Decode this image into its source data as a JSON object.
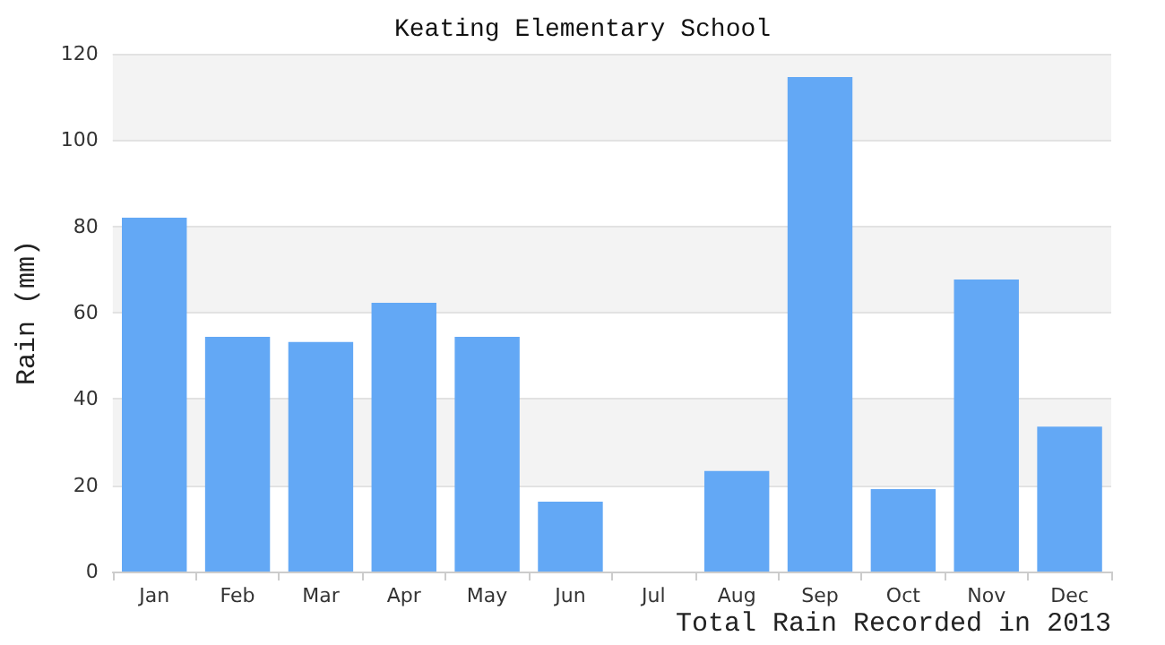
{
  "chart_data": {
    "type": "bar",
    "title": "Keating Elementary School",
    "xlabel": "Total Rain Recorded in 2013",
    "ylabel": "Rain (mm)",
    "categories": [
      "Jan",
      "Feb",
      "Mar",
      "Apr",
      "May",
      "Jun",
      "Jul",
      "Aug",
      "Sep",
      "Oct",
      "Nov",
      "Dec"
    ],
    "values": [
      82,
      54.4,
      53.2,
      62.3,
      54.4,
      16.2,
      null,
      23.3,
      114.6,
      19.1,
      67.7,
      33.6
    ],
    "color": "#63a8f5",
    "ylim": [
      0,
      120
    ],
    "yticks": [
      0,
      20,
      40,
      60,
      80,
      100,
      120
    ],
    "grid": "y"
  }
}
